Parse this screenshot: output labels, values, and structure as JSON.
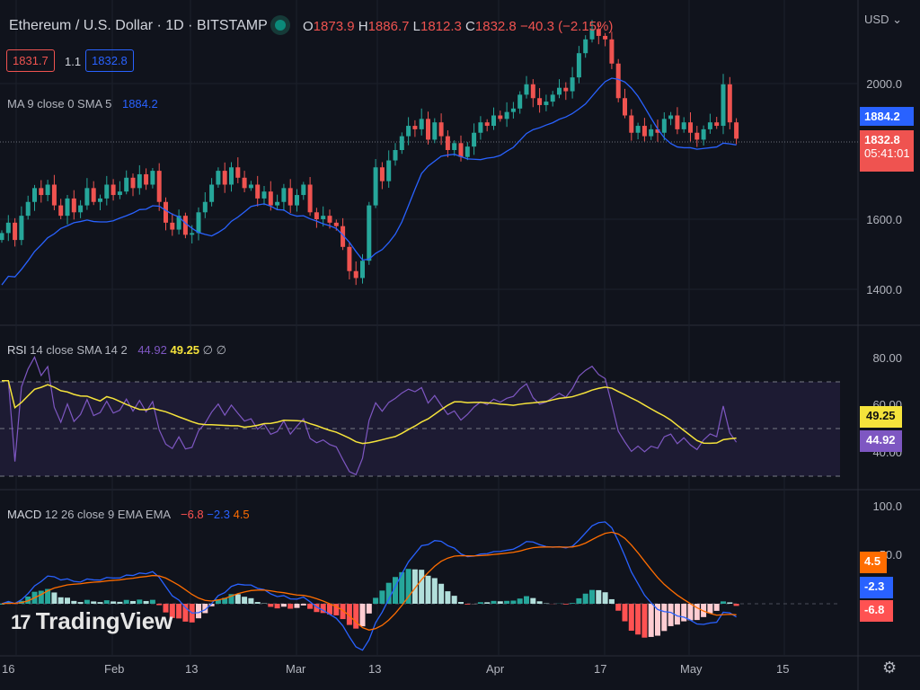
{
  "header": {
    "symbol": "Ethereum / U.S. Dollar · 1D · BITSTAMP",
    "o_label": "O",
    "o": "1873.9",
    "h_label": "H",
    "h": "1886.7",
    "l_label": "L",
    "l": "1812.3",
    "c_label": "C",
    "c": "1832.8",
    "change": "−40.3 (−2.15%)",
    "bid": "1831.7",
    "spread": "1.1",
    "ask": "1832.8",
    "currency": "USD"
  },
  "ma": {
    "label": "MA 9 close 0 SMA 5",
    "value": "1884.2"
  },
  "rsi": {
    "label_main": "RSI",
    "label": "14 close SMA 14 2",
    "value": "44.92",
    "sma": "49.25",
    "extra": "∅ ∅"
  },
  "macd": {
    "label_main": "MACD",
    "label": "12 26 close 9 EMA EMA",
    "hist": "−6.8",
    "macd": "−2.3",
    "signal": "4.5"
  },
  "price_axis": [
    "2000.0",
    "1600.0",
    "1400.0"
  ],
  "rsi_axis": [
    "80.00",
    "60.00",
    "40.00"
  ],
  "macd_axis": [
    "100.0",
    "50.0"
  ],
  "tags": {
    "ma": "1884.2",
    "price": "1832.8",
    "countdown": "05:41:01",
    "rsi_sma": "49.25",
    "rsi": "44.92",
    "signal": "4.5",
    "macd": "-2.3",
    "hist": "-6.8"
  },
  "x_axis": [
    "16",
    "Feb",
    "13",
    "Mar",
    "13",
    "Apr",
    "17",
    "May",
    "15"
  ],
  "watermark": "TradingView",
  "colors": {
    "up": "#26a69a",
    "down": "#ef5350",
    "ma": "#2962ff",
    "rsi": "#7e57c2",
    "rsi_sma": "#f5e33b",
    "signal": "#ff6d00"
  },
  "chart_data": {
    "type": "candlestick",
    "interval": "1D",
    "closes": [
      1560,
      1590,
      1540,
      1610,
      1650,
      1690,
      1670,
      1700,
      1640,
      1610,
      1660,
      1620,
      1640,
      1690,
      1650,
      1660,
      1700,
      1670,
      1680,
      1720,
      1690,
      1730,
      1700,
      1740,
      1650,
      1590,
      1570,
      1610,
      1555,
      1560,
      1620,
      1650,
      1700,
      1740,
      1700,
      1750,
      1720,
      1690,
      1700,
      1660,
      1680,
      1640,
      1650,
      1690,
      1640,
      1670,
      1700,
      1620,
      1600,
      1610,
      1590,
      1580,
      1520,
      1450,
      1430,
      1480,
      1640,
      1750,
      1710,
      1770,
      1800,
      1840,
      1870,
      1860,
      1890,
      1830,
      1880,
      1840,
      1800,
      1820,
      1780,
      1810,
      1850,
      1880,
      1870,
      1900,
      1890,
      1910,
      1920,
      1960,
      1990,
      1950,
      1930,
      1940,
      1960,
      1980,
      1970,
      2010,
      2080,
      2120,
      2150,
      2130,
      2120,
      2050,
      1950,
      1900,
      1850,
      1870,
      1840,
      1860,
      1850,
      1890,
      1900,
      1860,
      1880,
      1850,
      1830,
      1860,
      1880,
      1870,
      1990,
      1880,
      1832.8
    ],
    "ylim": [
      1260,
      2220
    ]
  }
}
